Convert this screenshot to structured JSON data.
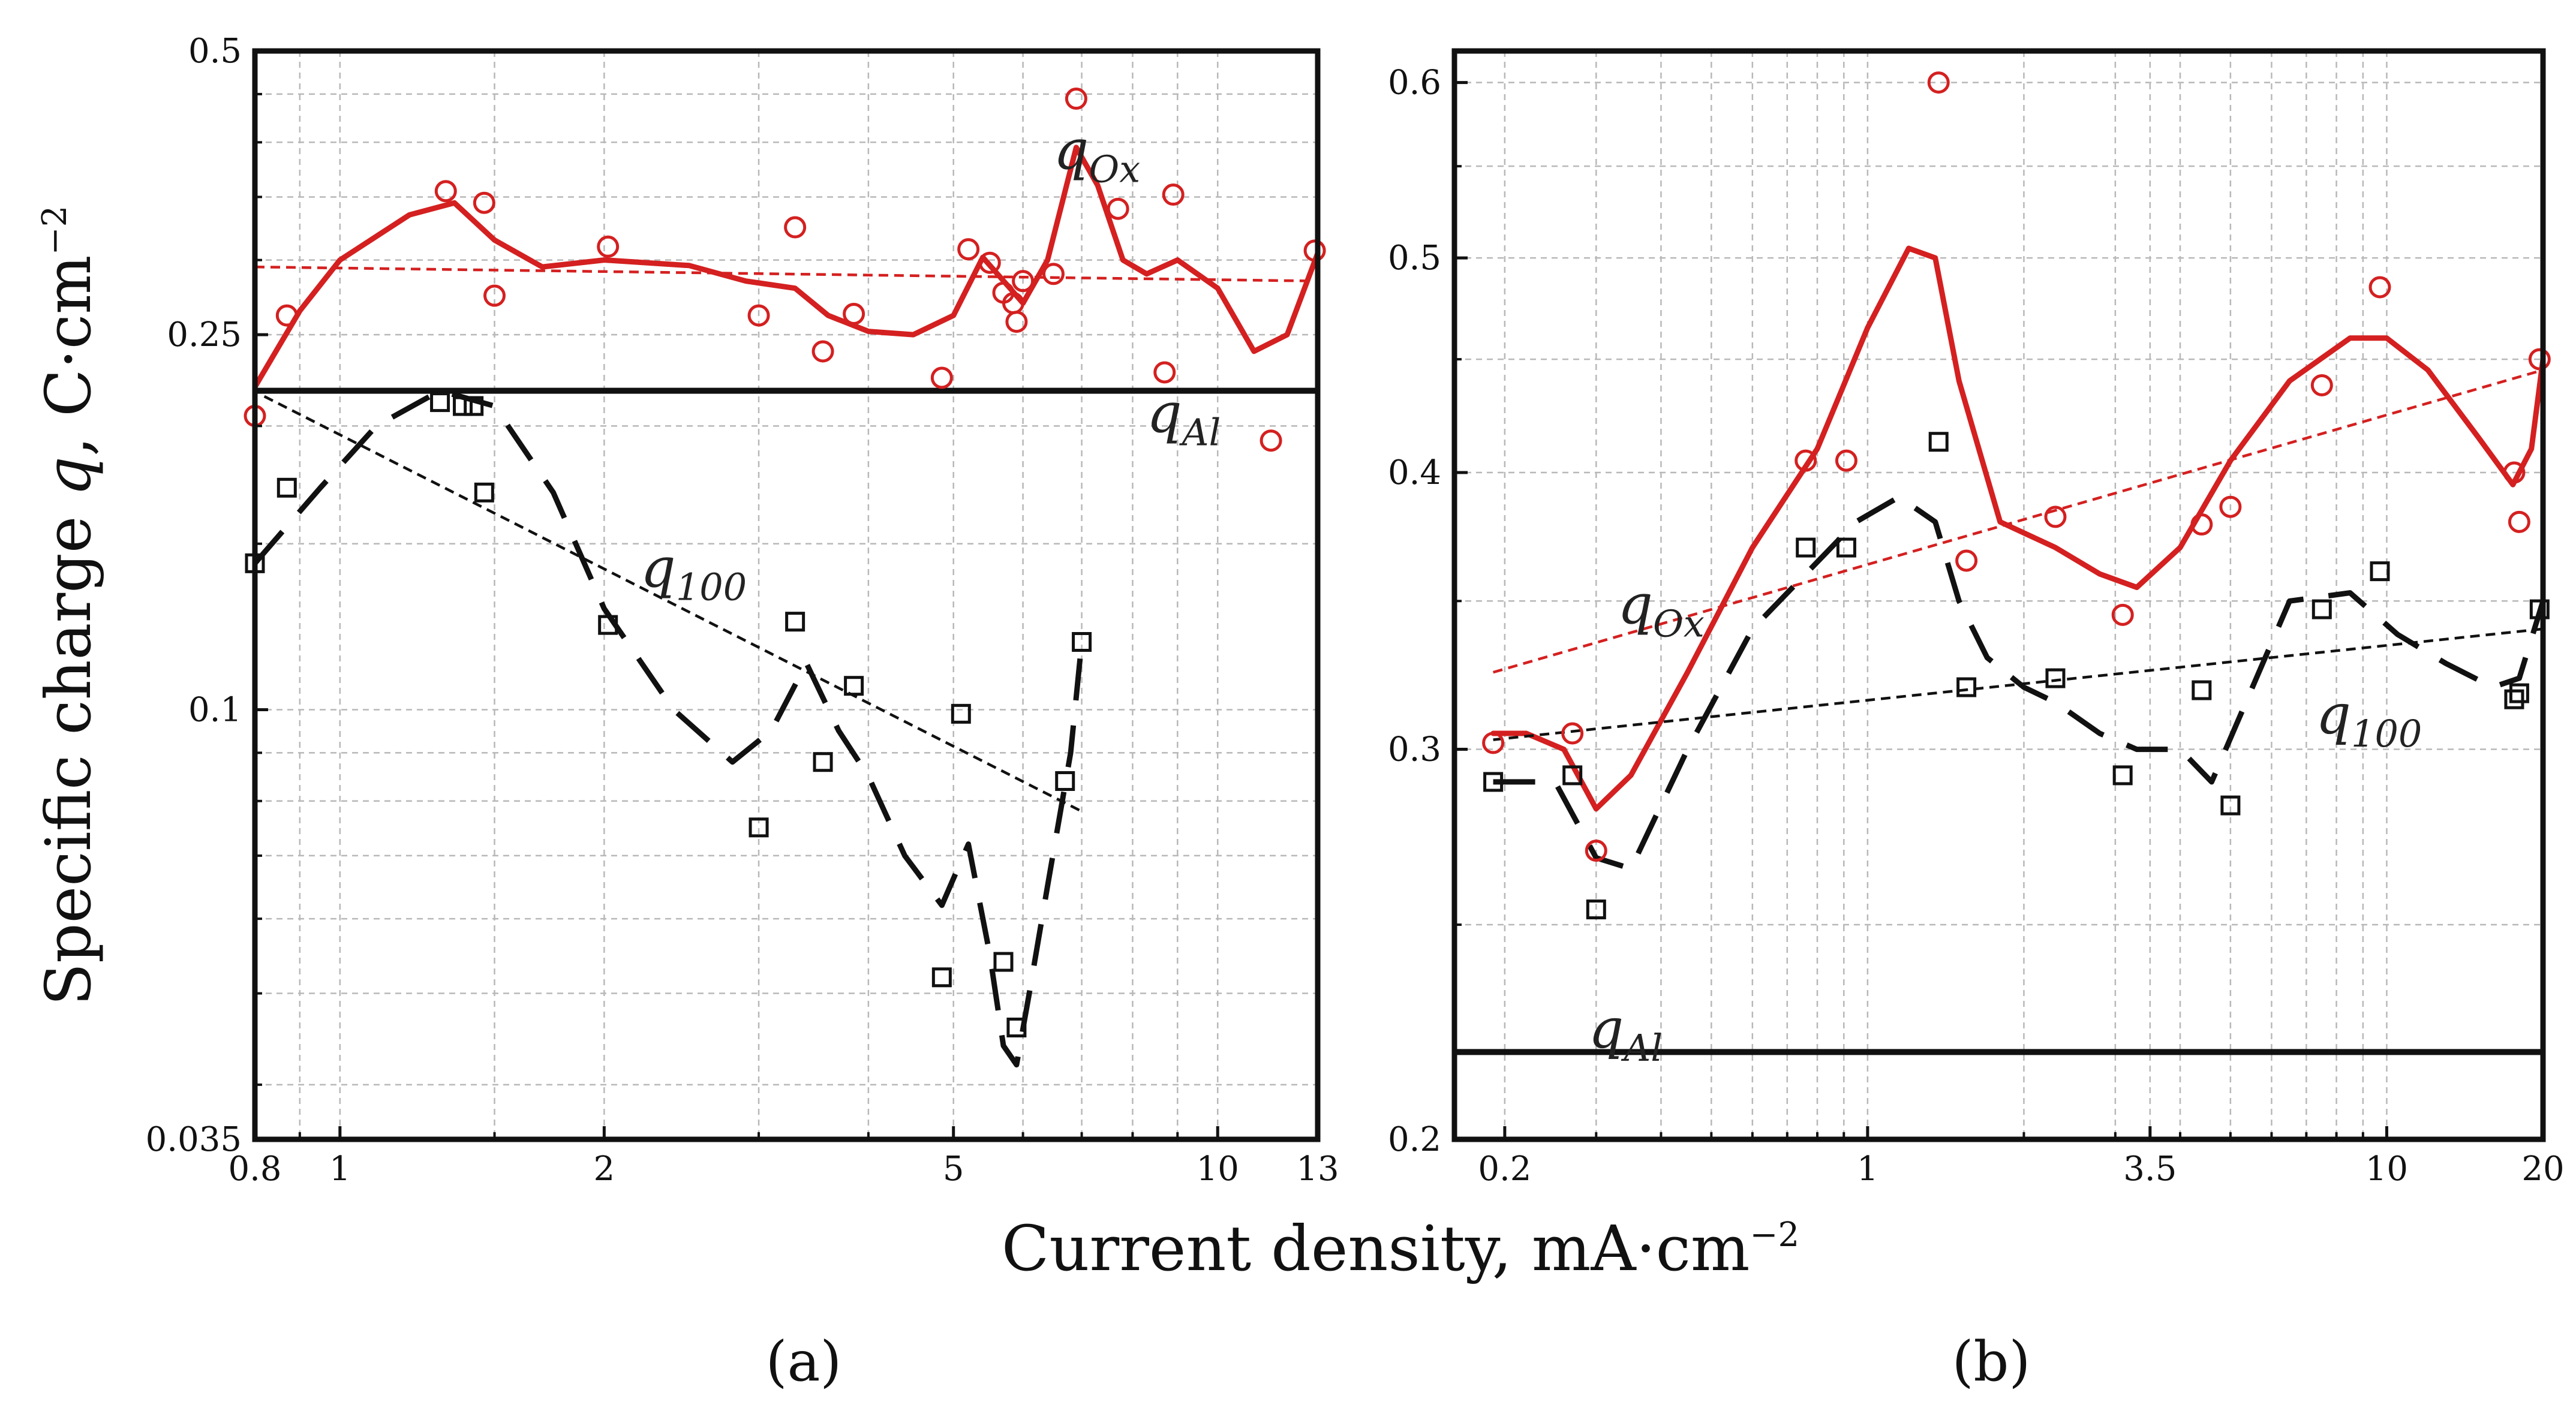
{
  "figure": {
    "ylabel_main": "Specific charge ",
    "ylabel_var": "q",
    "ylabel_unit": ", C·cm",
    "ylabel_exp": "−2",
    "xlabel_main": "Current density, mA·cm",
    "xlabel_exp": "−2"
  },
  "colors": {
    "ox": "#d42020",
    "al": "#111111",
    "grid": "#b8b8b8"
  },
  "chart_data": [
    {
      "type": "scatter",
      "panel_label": "(a)",
      "xscale": "log",
      "yscale": "log",
      "xlim": [
        0.8,
        13
      ],
      "ylim": [
        0.035,
        0.5
      ],
      "xticks": [
        0.8,
        1,
        2,
        5,
        10,
        13
      ],
      "xtick_labels": [
        "0.8",
        "1",
        "2",
        "5",
        "10",
        "13"
      ],
      "yticks": [
        0.035,
        0.1,
        0.25,
        0.5
      ],
      "ytick_labels": [
        "0.035",
        "0.1",
        "0.25",
        "0.5"
      ],
      "annotations": [
        {
          "base": "q",
          "sub": "Ox",
          "x": 6.5,
          "y": 0.375
        },
        {
          "base": "q",
          "sub": "Al",
          "x": 8.3,
          "y": 0.197
        },
        {
          "base": "q",
          "sub": "100",
          "x": 2.2,
          "y": 0.135
        }
      ],
      "series": [
        {
          "name": "qOx",
          "marker": "circle",
          "color": "#d42020",
          "x": [
            0.8,
            0.87,
            1.32,
            1.46,
            1.5,
            2.02,
            3.0,
            3.3,
            3.55,
            3.85,
            4.85,
            5.2,
            5.5,
            5.7,
            5.85,
            5.9,
            6.0,
            6.5,
            6.9,
            7.7,
            8.7,
            8.9,
            11.5,
            12.9
          ],
          "y": [
            0.205,
            0.262,
            0.355,
            0.345,
            0.275,
            0.31,
            0.262,
            0.325,
            0.24,
            0.263,
            0.225,
            0.308,
            0.298,
            0.277,
            0.27,
            0.258,
            0.285,
            0.29,
            0.445,
            0.34,
            0.228,
            0.352,
            0.193,
            0.307
          ]
        },
        {
          "name": "q100",
          "marker": "square",
          "color": "#111111",
          "x": [
            0.8,
            0.87,
            1.3,
            1.38,
            1.42,
            1.46,
            2.02,
            3.0,
            3.3,
            3.55,
            3.85,
            4.85,
            5.1,
            5.7,
            5.9,
            6.7,
            7.0
          ],
          "y": [
            0.143,
            0.172,
            0.212,
            0.21,
            0.21,
            0.17,
            0.123,
            0.075,
            0.124,
            0.088,
            0.106,
            0.052,
            0.099,
            0.054,
            0.046,
            0.084,
            0.118
          ]
        },
        {
          "name": "qOx spline",
          "line": "solid",
          "color": "#d42020",
          "x": [
            0.8,
            0.9,
            1.0,
            1.2,
            1.35,
            1.5,
            1.7,
            2.0,
            2.5,
            2.9,
            3.3,
            3.6,
            4.0,
            4.5,
            5.0,
            5.4,
            5.8,
            6.0,
            6.4,
            6.9,
            7.3,
            7.8,
            8.3,
            9.0,
            10.0,
            11.0,
            12.0,
            13.0
          ],
          "y": [
            0.22,
            0.265,
            0.3,
            0.335,
            0.345,
            0.315,
            0.295,
            0.3,
            0.296,
            0.285,
            0.28,
            0.262,
            0.252,
            0.25,
            0.262,
            0.302,
            0.28,
            0.27,
            0.3,
            0.395,
            0.36,
            0.3,
            0.29,
            0.3,
            0.28,
            0.24,
            0.25,
            0.305
          ]
        },
        {
          "name": "qOx trend",
          "line": "dashed",
          "color": "#d42020",
          "x": [
            0.8,
            13
          ],
          "y": [
            0.295,
            0.285
          ]
        },
        {
          "name": "q100 spline",
          "line": "long-dash",
          "color": "#111111",
          "x": [
            0.8,
            0.95,
            1.1,
            1.3,
            1.5,
            1.75,
            2.0,
            2.4,
            2.8,
            3.1,
            3.4,
            3.7,
            4.0,
            4.4,
            4.85,
            5.2,
            5.5,
            5.7,
            5.9,
            6.1,
            6.4,
            6.8,
            7.0
          ],
          "y": [
            0.143,
            0.172,
            0.2,
            0.218,
            0.21,
            0.17,
            0.128,
            0.1,
            0.088,
            0.095,
            0.112,
            0.095,
            0.085,
            0.07,
            0.062,
            0.072,
            0.055,
            0.044,
            0.042,
            0.05,
            0.065,
            0.09,
            0.118
          ]
        },
        {
          "name": "q100 trend",
          "line": "dashed",
          "color": "#111111",
          "x": [
            0.82,
            7.0
          ],
          "y": [
            0.215,
            0.078
          ]
        },
        {
          "name": "qAl",
          "line": "solid-thick",
          "color": "#111111",
          "x": [
            0.8,
            13
          ],
          "y": [
            0.218,
            0.218
          ]
        }
      ]
    },
    {
      "type": "scatter",
      "panel_label": "(b)",
      "xscale": "log",
      "yscale": "log",
      "xlim": [
        0.16,
        20
      ],
      "ylim": [
        0.2,
        0.62
      ],
      "xticks": [
        0.2,
        1,
        3.5,
        10,
        20
      ],
      "xtick_labels": [
        "0.2",
        "1",
        "3.5",
        "10",
        "20"
      ],
      "yticks": [
        0.2,
        0.3,
        0.4,
        0.5,
        0.6
      ],
      "ytick_labels": [
        "0.2",
        "0.3",
        "0.4",
        "0.5",
        "0.6"
      ],
      "annotations": [
        {
          "base": "q",
          "sub": "Ox",
          "x": 0.33,
          "y": 0.342
        },
        {
          "base": "q",
          "sub": "Al",
          "x": 0.29,
          "y": 0.22
        },
        {
          "base": "q",
          "sub": "100",
          "x": 7.3,
          "y": 0.305
        }
      ],
      "series": [
        {
          "name": "qOx",
          "marker": "circle",
          "color": "#d42020",
          "x": [
            0.19,
            0.27,
            0.3,
            0.76,
            0.91,
            1.37,
            1.55,
            2.3,
            3.1,
            4.4,
            5.0,
            7.5,
            9.7,
            17.6,
            18.0,
            19.7
          ],
          "y": [
            0.302,
            0.305,
            0.27,
            0.405,
            0.405,
            0.6,
            0.365,
            0.382,
            0.345,
            0.379,
            0.386,
            0.438,
            0.485,
            0.4,
            0.38,
            0.45
          ]
        },
        {
          "name": "q100",
          "marker": "square",
          "color": "#111111",
          "x": [
            0.19,
            0.27,
            0.3,
            0.76,
            0.91,
            1.37,
            1.55,
            2.3,
            3.1,
            4.4,
            5.0,
            7.5,
            9.7,
            17.6,
            18.0,
            19.7
          ],
          "y": [
            0.29,
            0.292,
            0.254,
            0.37,
            0.37,
            0.413,
            0.32,
            0.323,
            0.292,
            0.319,
            0.283,
            0.347,
            0.361,
            0.316,
            0.318,
            0.347
          ]
        },
        {
          "name": "qOx spline",
          "line": "solid",
          "color": "#d42020",
          "x": [
            0.19,
            0.22,
            0.26,
            0.3,
            0.35,
            0.45,
            0.6,
            0.8,
            1.0,
            1.2,
            1.35,
            1.5,
            1.8,
            2.3,
            2.8,
            3.3,
            4.0,
            5.0,
            6.5,
            8.5,
            10.0,
            12.0,
            15.0,
            17.5,
            19.0,
            20.0
          ],
          "y": [
            0.305,
            0.305,
            0.3,
            0.282,
            0.292,
            0.325,
            0.37,
            0.41,
            0.465,
            0.505,
            0.5,
            0.44,
            0.38,
            0.37,
            0.36,
            0.355,
            0.37,
            0.405,
            0.44,
            0.46,
            0.46,
            0.445,
            0.415,
            0.395,
            0.41,
            0.45
          ]
        },
        {
          "name": "qOx trend",
          "line": "dashed",
          "color": "#d42020",
          "x": [
            0.19,
            20
          ],
          "y": [
            0.325,
            0.445
          ]
        },
        {
          "name": "q100 spline",
          "line": "long-dash",
          "color": "#111111",
          "x": [
            0.19,
            0.25,
            0.3,
            0.35,
            0.45,
            0.6,
            0.76,
            0.95,
            1.15,
            1.35,
            1.5,
            1.7,
            2.0,
            2.3,
            2.8,
            3.3,
            4.0,
            4.6,
            5.2,
            6.5,
            8.5,
            10.5,
            13.0,
            16.0,
            18.0,
            20.0
          ],
          "y": [
            0.29,
            0.29,
            0.268,
            0.265,
            0.3,
            0.34,
            0.36,
            0.38,
            0.39,
            0.38,
            0.35,
            0.33,
            0.32,
            0.315,
            0.305,
            0.3,
            0.3,
            0.29,
            0.31,
            0.35,
            0.353,
            0.338,
            0.328,
            0.32,
            0.323,
            0.35
          ]
        },
        {
          "name": "q100 trend",
          "line": "dashed",
          "color": "#111111",
          "x": [
            0.19,
            20
          ],
          "y": [
            0.303,
            0.34
          ]
        },
        {
          "name": "qAl",
          "line": "solid-thick",
          "color": "#111111",
          "x": [
            0.16,
            20
          ],
          "y": [
            0.219,
            0.219
          ]
        }
      ]
    }
  ]
}
